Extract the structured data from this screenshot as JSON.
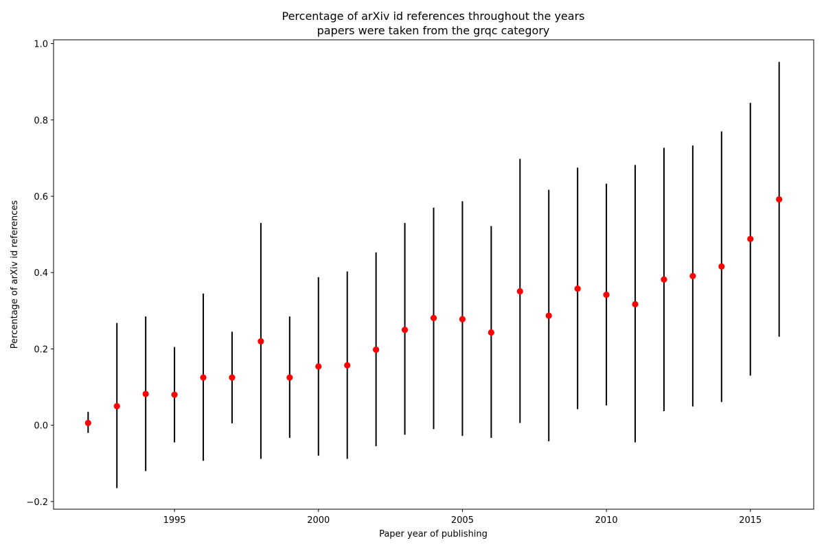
{
  "chart_data": {
    "type": "scatter",
    "title": "Percentage of arXiv id references throughout the years",
    "subtitle": "papers were taken from the grqc category",
    "xlabel": "Paper year of publishing",
    "ylabel": "Percentage of arXiv id references",
    "xlim": [
      1990.8,
      2017.2
    ],
    "ylim": [
      -0.22,
      1.01
    ],
    "xticks": [
      1995,
      2000,
      2005,
      2010,
      2015
    ],
    "yticks": [
      -0.2,
      0.0,
      0.2,
      0.4,
      0.6,
      0.8,
      1.0
    ],
    "ytick_labels": [
      "−0.2",
      "0.0",
      "0.2",
      "0.4",
      "0.6",
      "0.8",
      "1.0"
    ],
    "grid": false,
    "marker_color": "#ff0000",
    "errorbar_color": "#000000",
    "series": [
      {
        "points": [
          {
            "x": 1992,
            "y": 0.006,
            "err_low": -0.02,
            "err_high": 0.035
          },
          {
            "x": 1993,
            "y": 0.05,
            "err_low": -0.165,
            "err_high": 0.268
          },
          {
            "x": 1994,
            "y": 0.082,
            "err_low": -0.12,
            "err_high": 0.285
          },
          {
            "x": 1995,
            "y": 0.08,
            "err_low": -0.045,
            "err_high": 0.205
          },
          {
            "x": 1996,
            "y": 0.125,
            "err_low": -0.093,
            "err_high": 0.345
          },
          {
            "x": 1997,
            "y": 0.125,
            "err_low": 0.005,
            "err_high": 0.245
          },
          {
            "x": 1998,
            "y": 0.22,
            "err_low": -0.088,
            "err_high": 0.53
          },
          {
            "x": 1999,
            "y": 0.125,
            "err_low": -0.033,
            "err_high": 0.285
          },
          {
            "x": 2000,
            "y": 0.154,
            "err_low": -0.08,
            "err_high": 0.388
          },
          {
            "x": 2001,
            "y": 0.157,
            "err_low": -0.088,
            "err_high": 0.403
          },
          {
            "x": 2002,
            "y": 0.198,
            "err_low": -0.055,
            "err_high": 0.453
          },
          {
            "x": 2003,
            "y": 0.25,
            "err_low": -0.025,
            "err_high": 0.53
          },
          {
            "x": 2004,
            "y": 0.281,
            "err_low": -0.01,
            "err_high": 0.57
          },
          {
            "x": 2005,
            "y": 0.278,
            "err_low": -0.028,
            "err_high": 0.587
          },
          {
            "x": 2006,
            "y": 0.243,
            "err_low": -0.033,
            "err_high": 0.522
          },
          {
            "x": 2007,
            "y": 0.351,
            "err_low": 0.006,
            "err_high": 0.698
          },
          {
            "x": 2008,
            "y": 0.287,
            "err_low": -0.042,
            "err_high": 0.617
          },
          {
            "x": 2009,
            "y": 0.358,
            "err_low": 0.042,
            "err_high": 0.675
          },
          {
            "x": 2010,
            "y": 0.342,
            "err_low": 0.052,
            "err_high": 0.633
          },
          {
            "x": 2011,
            "y": 0.317,
            "err_low": -0.045,
            "err_high": 0.682
          },
          {
            "x": 2012,
            "y": 0.382,
            "err_low": 0.037,
            "err_high": 0.727
          },
          {
            "x": 2013,
            "y": 0.391,
            "err_low": 0.049,
            "err_high": 0.733
          },
          {
            "x": 2014,
            "y": 0.416,
            "err_low": 0.061,
            "err_high": 0.77
          },
          {
            "x": 2015,
            "y": 0.488,
            "err_low": 0.13,
            "err_high": 0.845
          },
          {
            "x": 2016,
            "y": 0.592,
            "err_low": 0.232,
            "err_high": 0.952
          }
        ]
      }
    ]
  }
}
